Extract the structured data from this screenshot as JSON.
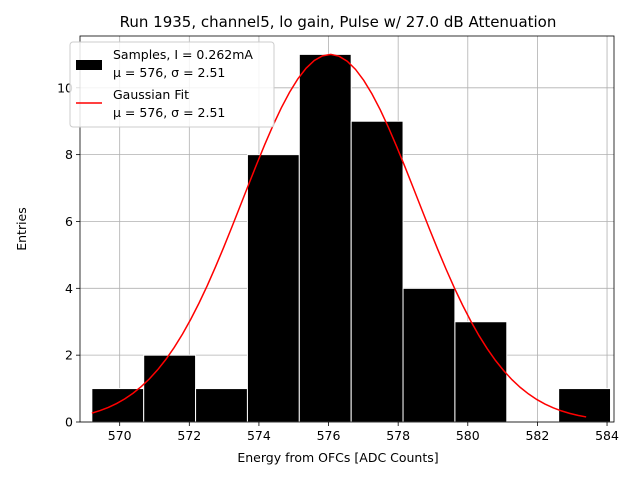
{
  "chart_data": {
    "type": "bar",
    "title": "Run 1935, channel5, lo gain, Pulse w/ 27.0 dB Attenuation",
    "xlabel": "Energy from OFCs [ADC Counts]",
    "ylabel": "Entries",
    "xlim": [
      568.86,
      584.2
    ],
    "ylim": [
      0,
      11.55
    ],
    "xticks": [
      570,
      572,
      574,
      576,
      578,
      580,
      582,
      584
    ],
    "yticks": [
      0,
      2,
      4,
      6,
      8,
      10
    ],
    "grid": true,
    "legend_position": "top-left",
    "histogram": {
      "name": "Samples, I = 0.262mA",
      "stats": "μ = 576, σ = 2.51",
      "color": "#000000",
      "edge_color": "#ffffff",
      "bin_edges": [
        569.2,
        570.69,
        572.18,
        573.67,
        575.16,
        576.65,
        578.14,
        579.63,
        581.12,
        582.61,
        584.1
      ],
      "counts": [
        1,
        2,
        1,
        8,
        11,
        9,
        4,
        3,
        0,
        1
      ]
    },
    "fit": {
      "name": "Gaussian Fit",
      "stats": "μ = 576, σ = 2.51",
      "color": "#ff0000",
      "mu": 576.05,
      "sigma": 2.51,
      "amplitude": 11.0,
      "x_range": [
        569.2,
        583.4
      ]
    }
  }
}
